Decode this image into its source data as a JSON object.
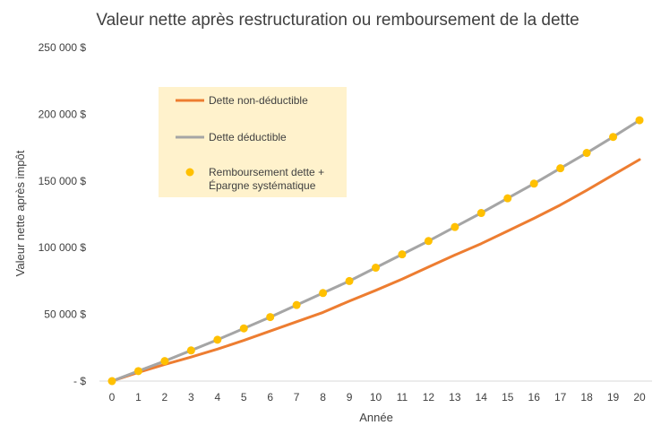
{
  "chart_data": {
    "type": "line",
    "title": "Valeur nette après restructuration ou remboursement de la dette",
    "xlabel": "Année",
    "ylabel": "Valeur nette après impôt",
    "x": [
      0,
      1,
      2,
      3,
      4,
      5,
      6,
      7,
      8,
      9,
      10,
      11,
      12,
      13,
      14,
      15,
      16,
      17,
      18,
      19,
      20
    ],
    "ylim": [
      0,
      250000
    ],
    "yticks": [
      0,
      50000,
      100000,
      150000,
      200000,
      250000
    ],
    "ytick_labels": [
      "- $",
      "50 000 $",
      "100 000 $",
      "150 000 $",
      "200 000 $",
      "250 000 $"
    ],
    "grid": false,
    "legend_position": "top-left-inside",
    "series": [
      {
        "name": "Dette non-déductible",
        "style": "line",
        "color": "#ED7D31",
        "values": [
          0,
          6500,
          12500,
          18000,
          24000,
          30500,
          37500,
          44500,
          51500,
          60000,
          68000,
          76500,
          85500,
          94500,
          103000,
          112500,
          122000,
          132000,
          143000,
          154500,
          166000
        ]
      },
      {
        "name": "Dette déductible",
        "style": "line",
        "color": "#A5A5A5",
        "values": [
          0,
          7500,
          15000,
          23000,
          31000,
          39500,
          48000,
          57000,
          66000,
          75000,
          85000,
          95000,
          105000,
          115500,
          126000,
          137000,
          148000,
          159500,
          171000,
          183000,
          195500
        ]
      },
      {
        "name": "Remboursement dette + Épargne systématique",
        "name_lines": [
          "Remboursement dette +",
          "Épargne systématique"
        ],
        "style": "marker",
        "color": "#FFC000",
        "values": [
          0,
          7500,
          15000,
          23000,
          31000,
          39500,
          48000,
          57000,
          66000,
          75000,
          85000,
          95000,
          105000,
          115500,
          126000,
          137000,
          148000,
          159500,
          171000,
          183000,
          195500
        ]
      }
    ]
  }
}
